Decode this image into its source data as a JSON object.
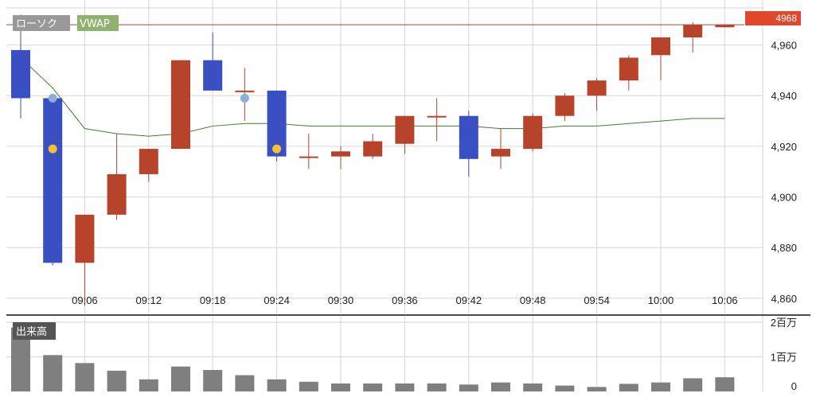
{
  "chart_data": [
    {
      "type": "candlestick",
      "legend": [
        {
          "name": "ローソク",
          "color": "#999999"
        },
        {
          "name": "VWAP",
          "color": "#8fb26e"
        }
      ],
      "x_ticks": [
        "09:06",
        "09:12",
        "09:18",
        "09:24",
        "09:30",
        "09:36",
        "09:42",
        "09:48",
        "09:54",
        "10:00",
        "10:06"
      ],
      "y_ticks": [
        "4,860",
        "4,880",
        "4,900",
        "4,920",
        "4,940",
        "4,960"
      ],
      "ylim": [
        4854,
        4974
      ],
      "last_price": "4968",
      "grid": true,
      "colors": {
        "up": "#b8432b",
        "down": "#3a4fc2",
        "vwap": "#3f7f2a",
        "last_price": "#e0472b",
        "marker_gold": "#f4c130",
        "marker_blue": "#8faed6"
      },
      "candles": [
        {
          "open": 4958,
          "high": 4972,
          "low": 4931,
          "close": 4939
        },
        {
          "open": 4939,
          "high": 4939,
          "low": 4873,
          "close": 4874
        },
        {
          "open": 4874,
          "high": 4893,
          "low": 4857,
          "close": 4893
        },
        {
          "open": 4893,
          "high": 4925,
          "low": 4891,
          "close": 4909
        },
        {
          "open": 4909,
          "high": 4919,
          "low": 4906,
          "close": 4919
        },
        {
          "open": 4919,
          "high": 4954,
          "low": 4919,
          "close": 4954
        },
        {
          "open": 4954,
          "high": 4965,
          "low": 4942,
          "close": 4942
        },
        {
          "open": 4942,
          "high": 4951,
          "low": 4930,
          "close": 4942
        },
        {
          "open": 4942,
          "high": 4942,
          "low": 4914,
          "close": 4916
        },
        {
          "open": 4916,
          "high": 4925,
          "low": 4911,
          "close": 4916
        },
        {
          "open": 4916,
          "high": 4920,
          "low": 4911,
          "close": 4918
        },
        {
          "open": 4916,
          "high": 4925,
          "low": 4915,
          "close": 4922
        },
        {
          "open": 4921,
          "high": 4932,
          "low": 4917,
          "close": 4932
        },
        {
          "open": 4932,
          "high": 4939,
          "low": 4922,
          "close": 4932
        },
        {
          "open": 4932,
          "high": 4934,
          "low": 4908,
          "close": 4915
        },
        {
          "open": 4916,
          "high": 4927,
          "low": 4911,
          "close": 4919
        },
        {
          "open": 4919,
          "high": 4933,
          "low": 4918,
          "close": 4932
        },
        {
          "open": 4932,
          "high": 4941,
          "low": 4930,
          "close": 4940
        },
        {
          "open": 4940,
          "high": 4947,
          "low": 4934,
          "close": 4946
        },
        {
          "open": 4946,
          "high": 4956,
          "low": 4942,
          "close": 4955
        },
        {
          "open": 4956,
          "high": 4963,
          "low": 4946,
          "close": 4963
        },
        {
          "open": 4963,
          "high": 4969,
          "low": 4957,
          "close": 4968
        },
        {
          "open": 4967,
          "high": 4968,
          "low": 4967,
          "close": 4968
        }
      ],
      "vwap": [
        4955,
        4943,
        4927,
        4925,
        4924,
        4925,
        4928,
        4929,
        4929,
        4928,
        4928,
        4928,
        4928,
        4928,
        4928,
        4927,
        4927,
        4928,
        4928,
        4929,
        4930,
        4931,
        4931
      ],
      "markers": [
        {
          "index": 1,
          "value": 4939,
          "color": "blue"
        },
        {
          "index": 1,
          "value": 4919,
          "color": "gold"
        },
        {
          "index": 7,
          "value": 4939,
          "color": "blue"
        },
        {
          "index": 8,
          "value": 4919,
          "color": "gold"
        }
      ]
    },
    {
      "type": "bar",
      "legend": "出来高",
      "y_ticks": [
        "0",
        "1百万",
        "2百万"
      ],
      "ylim": [
        0,
        2000000
      ],
      "values": [
        1850000,
        1050000,
        820000,
        600000,
        350000,
        720000,
        620000,
        470000,
        350000,
        280000,
        230000,
        230000,
        230000,
        230000,
        200000,
        260000,
        230000,
        170000,
        130000,
        220000,
        260000,
        380000,
        410000
      ]
    }
  ]
}
